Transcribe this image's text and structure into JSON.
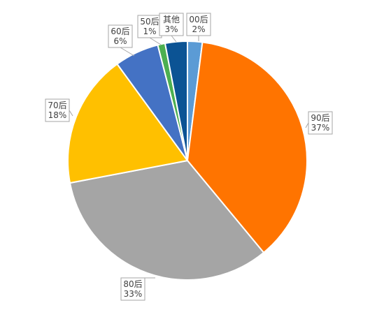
{
  "chart_data": {
    "type": "pie",
    "title": "",
    "legend": "none",
    "slices": [
      {
        "name": "00后",
        "value": 2,
        "label_pct": "2%",
        "color": "#5B9BD5"
      },
      {
        "name": "90后",
        "value": 37,
        "label_pct": "37%",
        "color": "#FF7400"
      },
      {
        "name": "80后",
        "value": 33,
        "label_pct": "33%",
        "color": "#A5A5A5"
      },
      {
        "name": "70后",
        "value": 18,
        "label_pct": "18%",
        "color": "#FFC000"
      },
      {
        "name": "60后",
        "value": 6,
        "label_pct": "6%",
        "color": "#4472C4"
      },
      {
        "name": "50后",
        "value": 1,
        "label_pct": "1%",
        "color": "#4CAF50"
      },
      {
        "name": "其他",
        "value": 3,
        "label_pct": "3%",
        "color": "#0B5394"
      }
    ]
  }
}
